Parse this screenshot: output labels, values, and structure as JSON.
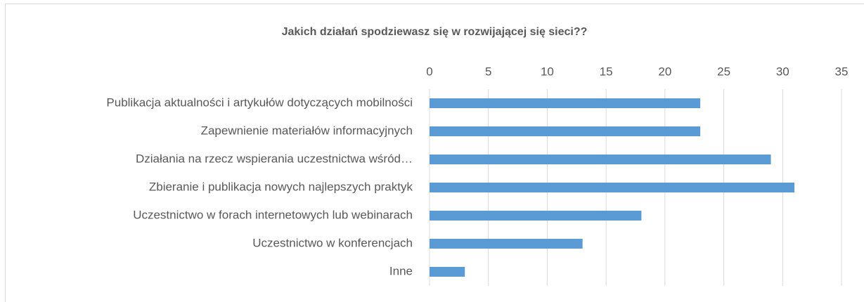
{
  "chart_data": {
    "type": "bar",
    "title": "Jakich działań spodziewasz się w rozwijającej się sieci??",
    "categories": [
      "Publikacja aktualności i artykułów dotyczących mobilności",
      "Zapewnienie materiałów informacyjnych",
      "Działania na rzecz wspierania uczestnictwa wśród…",
      "Zbieranie i publikacja nowych najlepszych praktyk",
      "Uczestnictwo w forach internetowych lub webinarach",
      "Uczestnictwo w konferencjach",
      "Inne"
    ],
    "values": [
      23,
      23,
      29,
      31,
      18,
      13,
      3
    ],
    "color": "#5b9bd5",
    "xlim": [
      0,
      35
    ],
    "xticks": [
      0,
      5,
      10,
      15,
      20,
      25,
      30,
      35
    ],
    "grid": true
  }
}
